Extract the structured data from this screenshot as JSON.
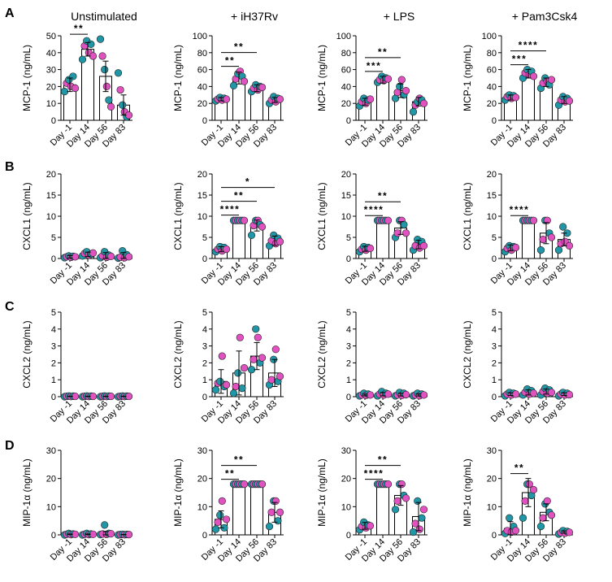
{
  "figure": {
    "panels": [
      "A",
      "B",
      "C",
      "D"
    ],
    "columns": [
      "Unstimulated",
      "+ iH37Rv",
      "+ LPS",
      "+ Pam3Csk4"
    ],
    "x_categories": [
      "Day -1",
      "Day 14",
      "Day 56",
      "Day 83"
    ],
    "colors": {
      "teal": "#2196a6",
      "magenta": "#e052c0"
    }
  },
  "chart_data": [
    {
      "type": "bar",
      "panel": "A",
      "title": "Unstimulated",
      "ylabel": "MCP-1 (ng/mL)",
      "ylim": [
        0,
        50
      ],
      "yticks": [
        0,
        10,
        20,
        30,
        40,
        50
      ],
      "categories": [
        "Day -1",
        "Day 14",
        "Day 56",
        "Day 83"
      ],
      "values": [
        21,
        42,
        26,
        9
      ],
      "errors": [
        4,
        4,
        9,
        6
      ],
      "points": [
        [
          17,
          22,
          24,
          20,
          26,
          19
        ],
        [
          36,
          44,
          47,
          40,
          45,
          38
        ],
        [
          48,
          38,
          30,
          20,
          12,
          8
        ],
        [
          28,
          18,
          9,
          5,
          2,
          3
        ]
      ],
      "significance": [
        {
          "from": 0,
          "to": 1,
          "label": "**"
        }
      ]
    },
    {
      "type": "bar",
      "panel": "A",
      "title": "+ iH37Rv",
      "ylabel": "MCP-1 (ng/mL)",
      "ylim": [
        0,
        100
      ],
      "yticks": [
        0,
        20,
        40,
        60,
        80,
        100
      ],
      "categories": [
        "Day -1",
        "Day 14",
        "Day 56",
        "Day 83"
      ],
      "values": [
        25,
        50,
        38,
        24
      ],
      "errors": [
        2,
        7,
        4,
        3
      ],
      "points": [
        [
          23,
          25,
          27,
          24,
          26,
          25
        ],
        [
          41,
          49,
          55,
          58,
          52,
          46
        ],
        [
          34,
          38,
          42,
          36,
          40,
          39
        ],
        [
          20,
          24,
          28,
          22,
          26,
          25
        ]
      ],
      "significance": [
        {
          "from": 0,
          "to": 1,
          "label": "**"
        },
        {
          "from": 0,
          "to": 2,
          "label": "**"
        }
      ]
    },
    {
      "type": "bar",
      "panel": "A",
      "title": "+ LPS",
      "ylabel": "MCP-1 (ng/mL)",
      "ylim": [
        0,
        100
      ],
      "yticks": [
        0,
        20,
        40,
        60,
        80,
        100
      ],
      "categories": [
        "Day -1",
        "Day 14",
        "Day 56",
        "Day 83"
      ],
      "values": [
        22,
        48,
        35,
        22
      ],
      "errors": [
        4,
        4,
        8,
        5
      ],
      "points": [
        [
          17,
          22,
          26,
          20,
          24,
          25
        ],
        [
          45,
          48,
          52,
          47,
          50,
          49
        ],
        [
          26,
          33,
          40,
          48,
          30,
          35
        ],
        [
          10,
          18,
          22,
          26,
          24,
          20
        ]
      ],
      "significance": [
        {
          "from": 0,
          "to": 1,
          "label": "***"
        },
        {
          "from": 0,
          "to": 2,
          "label": "**"
        }
      ]
    },
    {
      "type": "bar",
      "panel": "A",
      "title": "+ Pam3Csk4",
      "ylabel": "MCP-1 (ng/mL)",
      "ylim": [
        0,
        100
      ],
      "yticks": [
        0,
        20,
        40,
        60,
        80,
        100
      ],
      "categories": [
        "Day -1",
        "Day 14",
        "Day 56",
        "Day 83"
      ],
      "values": [
        27,
        55,
        45,
        24
      ],
      "errors": [
        3,
        5,
        5,
        4
      ],
      "points": [
        [
          24,
          28,
          30,
          26,
          29,
          27
        ],
        [
          50,
          56,
          60,
          54,
          58,
          52
        ],
        [
          38,
          44,
          50,
          46,
          42,
          48
        ],
        [
          18,
          24,
          28,
          22,
          26,
          23
        ]
      ],
      "significance": [
        {
          "from": 0,
          "to": 1,
          "label": "***"
        },
        {
          "from": 0,
          "to": 2,
          "label": "****"
        }
      ]
    },
    {
      "type": "bar",
      "panel": "B",
      "title": "Unstimulated",
      "ylabel": "CXCL1 (ng/mL)",
      "ylim": [
        0,
        20
      ],
      "yticks": [
        0,
        5,
        10,
        15,
        20
      ],
      "categories": [
        "Day -1",
        "Day 14",
        "Day 56",
        "Day 83"
      ],
      "values": [
        0.4,
        1.0,
        0.7,
        0.6
      ],
      "errors": [
        0.3,
        0.5,
        0.7,
        0.8
      ],
      "points": [
        [
          0.2,
          0.4,
          0.6,
          0.3,
          0.5,
          0.4
        ],
        [
          0.6,
          1.2,
          1.6,
          0.8,
          1.0,
          1.3
        ],
        [
          0.2,
          0.6,
          1.6,
          0.3,
          0.8,
          0.5
        ],
        [
          0.1,
          0.3,
          1.8,
          0.2,
          0.9,
          0.4
        ]
      ],
      "significance": []
    },
    {
      "type": "bar",
      "panel": "B",
      "title": "+ iH37Rv",
      "ylabel": "CXCL1 (ng/mL)",
      "ylim": [
        0,
        20
      ],
      "yticks": [
        0,
        5,
        10,
        15,
        20
      ],
      "categories": [
        "Day -1",
        "Day 14",
        "Day 56",
        "Day 83"
      ],
      "values": [
        2.2,
        9.0,
        7.8,
        4.2
      ],
      "errors": [
        0.6,
        0,
        1.3,
        1.1
      ],
      "points": [
        [
          1.6,
          2.2,
          2.8,
          1.8,
          2.6,
          2.2
        ],
        [
          9,
          9,
          9,
          9,
          9,
          9
        ],
        [
          5.5,
          7.8,
          9,
          9,
          8,
          7.5
        ],
        [
          3,
          4.2,
          5.5,
          3.5,
          4.8,
          4
        ]
      ],
      "significance": [
        {
          "from": 0,
          "to": 1,
          "label": "****"
        },
        {
          "from": 0,
          "to": 2,
          "label": "**"
        },
        {
          "from": 0,
          "to": 3,
          "label": "*"
        }
      ]
    },
    {
      "type": "bar",
      "panel": "B",
      "title": "+ LPS",
      "ylabel": "CXCL1 (ng/mL)",
      "ylim": [
        0,
        20
      ],
      "yticks": [
        0,
        5,
        10,
        15,
        20
      ],
      "categories": [
        "Day -1",
        "Day 14",
        "Day 56",
        "Day 83"
      ],
      "values": [
        2.3,
        9.0,
        7.2,
        3.3
      ],
      "errors": [
        0.6,
        0,
        1.5,
        1.0
      ],
      "points": [
        [
          1.6,
          2.2,
          2.8,
          2,
          2.6,
          2.4
        ],
        [
          9,
          9,
          9,
          9,
          9,
          9
        ],
        [
          5,
          6,
          9,
          9,
          8,
          6
        ],
        [
          2,
          3,
          4.5,
          2.5,
          4,
          3
        ]
      ],
      "significance": [
        {
          "from": 0,
          "to": 1,
          "label": "****"
        },
        {
          "from": 0,
          "to": 2,
          "label": "**"
        }
      ]
    },
    {
      "type": "bar",
      "panel": "B",
      "title": "+ Pam3Csk4",
      "ylabel": "CXCL1 (ng/mL)",
      "ylim": [
        0,
        20
      ],
      "yticks": [
        0,
        5,
        10,
        15,
        20
      ],
      "categories": [
        "Day -1",
        "Day 14",
        "Day 56",
        "Day 83"
      ],
      "values": [
        2.5,
        9.0,
        6.0,
        4.5
      ],
      "errors": [
        0.7,
        0,
        2.5,
        1.5
      ],
      "points": [
        [
          1.6,
          2.4,
          3,
          2,
          2.8,
          2.6
        ],
        [
          9,
          9,
          9,
          9,
          9,
          9
        ],
        [
          2,
          4.5,
          9,
          9,
          6,
          5
        ],
        [
          2,
          3.5,
          7.5,
          4,
          6,
          3
        ]
      ],
      "significance": [
        {
          "from": 0,
          "to": 1,
          "label": "****"
        }
      ]
    },
    {
      "type": "bar",
      "panel": "C",
      "title": "Unstimulated",
      "ylabel": "CXCL2 (ng/mL)",
      "ylim": [
        0,
        5
      ],
      "yticks": [
        0,
        1,
        2,
        3,
        4,
        5
      ],
      "categories": [
        "Day -1",
        "Day 14",
        "Day 56",
        "Day 83"
      ],
      "values": [
        0.02,
        0.02,
        0.02,
        0.02
      ],
      "errors": [
        0.01,
        0.01,
        0.01,
        0.01
      ],
      "points": [
        [
          0,
          0.02,
          0.04,
          0.01,
          0.03,
          0.02
        ],
        [
          0,
          0.02,
          0.04,
          0.01,
          0.03,
          0.02
        ],
        [
          0,
          0.02,
          0.04,
          0.01,
          0.03,
          0.02
        ],
        [
          0,
          0.02,
          0.04,
          0.01,
          0.03,
          0.02
        ]
      ],
      "significance": []
    },
    {
      "type": "bar",
      "panel": "C",
      "title": "+ iH37Rv",
      "ylabel": "CXCL2 (ng/mL)",
      "ylim": [
        0,
        5
      ],
      "yticks": [
        0,
        1,
        2,
        3,
        4,
        5
      ],
      "categories": [
        "Day -1",
        "Day 14",
        "Day 56",
        "Day 83"
      ],
      "values": [
        0.9,
        1.4,
        2.4,
        1.4
      ],
      "errors": [
        0.7,
        1.3,
        0.8,
        0.8
      ],
      "points": [
        [
          0.4,
          0.8,
          0.9,
          2.4,
          0.6,
          0.7
        ],
        [
          0.2,
          0.6,
          1.4,
          3.5,
          0.5,
          1.7
        ],
        [
          1.6,
          2.2,
          4.0,
          3.5,
          2.0,
          2.3
        ],
        [
          0.7,
          1.0,
          2.2,
          2.8,
          0.9,
          1.2
        ]
      ],
      "significance": []
    },
    {
      "type": "bar",
      "panel": "C",
      "title": "+ LPS",
      "ylabel": "CXCL2 (ng/mL)",
      "ylim": [
        0,
        5
      ],
      "yticks": [
        0,
        1,
        2,
        3,
        4,
        5
      ],
      "categories": [
        "Day -1",
        "Day 14",
        "Day 56",
        "Day 83"
      ],
      "values": [
        0.1,
        0.15,
        0.12,
        0.1
      ],
      "errors": [
        0.05,
        0.1,
        0.08,
        0.06
      ],
      "points": [
        [
          0.05,
          0.1,
          0.2,
          0.08,
          0.15,
          0.1
        ],
        [
          0.05,
          0.15,
          0.3,
          0.1,
          0.2,
          0.15
        ],
        [
          0.05,
          0.1,
          0.25,
          0.08,
          0.2,
          0.12
        ],
        [
          0.05,
          0.1,
          0.2,
          0.06,
          0.15,
          0.1
        ]
      ],
      "significance": []
    },
    {
      "type": "bar",
      "panel": "C",
      "title": "+ Pam3Csk4",
      "ylabel": "CXCL2 (ng/mL)",
      "ylim": [
        0,
        5
      ],
      "yticks": [
        0,
        1,
        2,
        3,
        4,
        5
      ],
      "categories": [
        "Day -1",
        "Day 14",
        "Day 56",
        "Day 83"
      ],
      "values": [
        0.15,
        0.25,
        0.3,
        0.15
      ],
      "errors": [
        0.08,
        0.15,
        0.15,
        0.08
      ],
      "points": [
        [
          0.05,
          0.15,
          0.25,
          0.1,
          0.2,
          0.15
        ],
        [
          0.1,
          0.25,
          0.45,
          0.15,
          0.35,
          0.2
        ],
        [
          0.1,
          0.3,
          0.5,
          0.2,
          0.4,
          0.25
        ],
        [
          0.05,
          0.15,
          0.25,
          0.1,
          0.2,
          0.12
        ]
      ],
      "significance": []
    },
    {
      "type": "bar",
      "panel": "D",
      "title": "Unstimulated",
      "ylabel": "MIP-1α (ng/mL)",
      "ylim": [
        0,
        30
      ],
      "yticks": [
        0,
        10,
        20,
        30
      ],
      "categories": [
        "Day -1",
        "Day 14",
        "Day 56",
        "Day 83"
      ],
      "values": [
        0.2,
        0.2,
        0.6,
        0.1
      ],
      "errors": [
        0.1,
        0.1,
        0.6,
        0.05
      ],
      "points": [
        [
          0,
          0.2,
          0.5,
          0.1,
          0.3,
          0.2
        ],
        [
          0,
          0.2,
          0.5,
          0.1,
          0.3,
          0.2
        ],
        [
          0.1,
          0.3,
          3.5,
          0.2,
          0.5,
          0.4
        ],
        [
          0,
          0.1,
          0.2,
          0.05,
          0.15,
          0.1
        ]
      ],
      "significance": []
    },
    {
      "type": "bar",
      "panel": "D",
      "title": "+ iH37Rv",
      "ylabel": "MIP-1α (ng/mL)",
      "ylim": [
        0,
        30
      ],
      "yticks": [
        0,
        10,
        20,
        30
      ],
      "categories": [
        "Day -1",
        "Day 14",
        "Day 56",
        "Day 83"
      ],
      "values": [
        5.5,
        18,
        18,
        8
      ],
      "errors": [
        3,
        0,
        0,
        3.5
      ],
      "points": [
        [
          2,
          4.5,
          7,
          12,
          2.5,
          5.5
        ],
        [
          18,
          18,
          18,
          18,
          18,
          18
        ],
        [
          18,
          18,
          18,
          18,
          18,
          18
        ],
        [
          3,
          8,
          12,
          12,
          5,
          8
        ]
      ],
      "significance": [
        {
          "from": 0,
          "to": 1,
          "label": "**"
        },
        {
          "from": 0,
          "to": 2,
          "label": "**"
        }
      ]
    },
    {
      "type": "bar",
      "panel": "D",
      "title": "+ LPS",
      "ylabel": "MIP-1α (ng/mL)",
      "ylim": [
        0,
        30
      ],
      "yticks": [
        0,
        10,
        20,
        30
      ],
      "categories": [
        "Day -1",
        "Day 14",
        "Day 56",
        "Day 83"
      ],
      "values": [
        3.2,
        18,
        14,
        6.5
      ],
      "errors": [
        1.2,
        0,
        3.5,
        5
      ],
      "points": [
        [
          1.8,
          3,
          4.5,
          2.5,
          3.5,
          3.2
        ],
        [
          18,
          18,
          18,
          18,
          18,
          18
        ],
        [
          9,
          12,
          18,
          18,
          14,
          13
        ],
        [
          1,
          4,
          12,
          2,
          6,
          9
        ]
      ],
      "significance": [
        {
          "from": 0,
          "to": 1,
          "label": "****"
        },
        {
          "from": 0,
          "to": 2,
          "label": "**"
        }
      ]
    },
    {
      "type": "bar",
      "panel": "D",
      "title": "+ Pam3Csk4",
      "ylabel": "MIP-1α (ng/mL)",
      "ylim": [
        0,
        30
      ],
      "yticks": [
        0,
        10,
        20,
        30
      ],
      "categories": [
        "Day -1",
        "Day 14",
        "Day 56",
        "Day 83"
      ],
      "values": [
        2.2,
        15,
        8,
        1
      ],
      "errors": [
        2.5,
        5,
        3,
        0.4
      ],
      "points": [
        [
          0.5,
          1.5,
          6,
          1,
          3,
          1.5
        ],
        [
          6,
          12,
          18,
          18,
          14,
          16
        ],
        [
          3,
          6,
          11,
          12,
          8,
          7
        ],
        [
          0.3,
          0.8,
          1.5,
          0.6,
          1.2,
          0.9
        ]
      ],
      "significance": [
        {
          "from": 0,
          "to": 1,
          "label": "**"
        }
      ]
    }
  ]
}
